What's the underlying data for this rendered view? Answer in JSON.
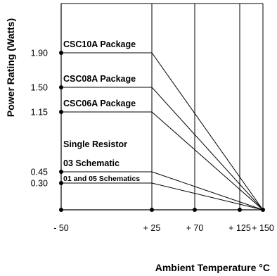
{
  "chart_data": {
    "type": "line",
    "title": "",
    "xlabel": "Ambient Temperature °C",
    "ylabel": "Power Rating (Watts)",
    "x_tick_labels": [
      "- 50",
      "+ 25",
      "+ 70",
      "+ 125",
      "+ 150"
    ],
    "y_tick_labels": [
      "1.90",
      "1.50",
      "1.15",
      "0.45",
      "0.30"
    ],
    "x_ticks": [
      -50,
      25,
      70,
      125,
      150
    ],
    "y_ticks": [
      1.9,
      1.5,
      1.15,
      0.45,
      0.3
    ],
    "xlim": [
      -50,
      150
    ],
    "ylim": [
      0,
      2.6
    ],
    "grid": "vertical lines at x ticks",
    "series": [
      {
        "name": "CSC10A Package",
        "x": [
          -50,
          25,
          150
        ],
        "y": [
          1.9,
          1.9,
          0
        ]
      },
      {
        "name": "CSC08A Package",
        "x": [
          -50,
          25,
          150
        ],
        "y": [
          1.5,
          1.5,
          0
        ]
      },
      {
        "name": "CSC06A Package",
        "x": [
          -50,
          25,
          150
        ],
        "y": [
          1.15,
          1.15,
          0
        ]
      },
      {
        "name": "03 Schematic",
        "x": [
          -50,
          25,
          150
        ],
        "y": [
          0.45,
          0.45,
          0
        ]
      },
      {
        "name": "01 and 05 Schematics",
        "x": [
          -50,
          25,
          150
        ],
        "y": [
          0.3,
          0.3,
          0
        ]
      }
    ],
    "annotations": [
      "Single Resistor"
    ]
  }
}
